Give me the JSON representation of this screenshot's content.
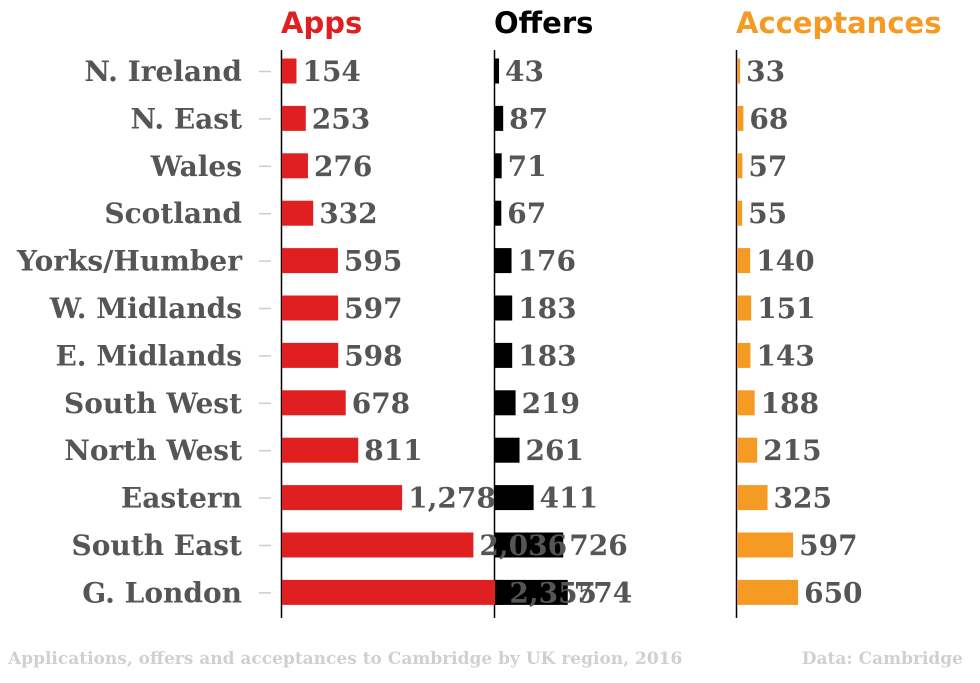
{
  "chart_data": {
    "type": "bar",
    "orientation": "horizontal",
    "categories": [
      "N. Ireland",
      "N. East",
      "Wales",
      "Scotland",
      "Yorks/Humber",
      "W. Midlands",
      "E. Midlands",
      "South West",
      "North West",
      "Eastern",
      "South East",
      "G. London"
    ],
    "series": [
      {
        "name": "Apps",
        "color": "#e02020",
        "values": [
          154,
          253,
          276,
          332,
          595,
          597,
          598,
          678,
          811,
          1278,
          2036,
          2355
        ],
        "labels": [
          "154",
          "253",
          "276",
          "332",
          "595",
          "597",
          "598",
          "678",
          "811",
          "1,278",
          "2,036",
          "2,355"
        ]
      },
      {
        "name": "Offers",
        "color": "#000000",
        "values": [
          43,
          87,
          71,
          67,
          176,
          183,
          183,
          219,
          261,
          411,
          726,
          774
        ],
        "labels": [
          "43",
          "87",
          "71",
          "67",
          "176",
          "183",
          "183",
          "219",
          "261",
          "411",
          "726",
          "774"
        ]
      },
      {
        "name": "Acceptances",
        "color": "#f59a23",
        "values": [
          33,
          68,
          57,
          55,
          140,
          151,
          143,
          188,
          215,
          325,
          597,
          650
        ],
        "labels": [
          "33",
          "68",
          "57",
          "55",
          "140",
          "151",
          "143",
          "188",
          "215",
          "325",
          "597",
          "650"
        ]
      }
    ],
    "xlim": [
      0,
      2400
    ],
    "legend": "column headers",
    "grid": false
  },
  "footer": {
    "caption": "Applications, offers and acceptances to Cambridge by UK region, 2016",
    "source": "Data: Cambridge"
  },
  "colors": {
    "label_text": "#555555",
    "footer_text": "#d0d0d0",
    "axis": "#000000"
  }
}
